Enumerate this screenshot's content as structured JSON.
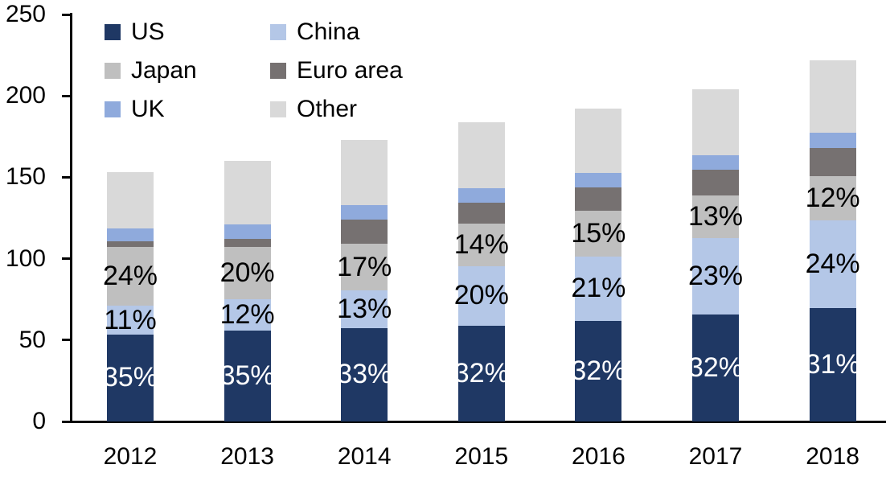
{
  "chart_data": {
    "type": "bar",
    "stacked": true,
    "title": "",
    "xlabel": "",
    "ylabel": "",
    "grid": false,
    "legend_position": "top-left",
    "background_color": "#ffffff",
    "axis_color": "#000000",
    "categories": [
      "2012",
      "2013",
      "2014",
      "2015",
      "2016",
      "2017",
      "2018"
    ],
    "y_axis": {
      "min": 0,
      "max": 250,
      "step": 50,
      "tick_labels": [
        "0",
        "50",
        "100",
        "150",
        "200",
        "250"
      ]
    },
    "series": [
      {
        "name": "US",
        "color": "#1f3864",
        "label_color": "#ffffff",
        "values": [
          53.5,
          56,
          57.5,
          59,
          62,
          65.5,
          69.5
        ],
        "labels": [
          "35%",
          "35%",
          "33%",
          "32%",
          "32%",
          "32%",
          "31%"
        ]
      },
      {
        "name": "China",
        "color": "#b4c7e7",
        "label_color": "#000000",
        "values": [
          17.5,
          19,
          23,
          36.5,
          39.5,
          47,
          54
        ],
        "labels": [
          "11%",
          "12%",
          "13%",
          "20%",
          "21%",
          "23%",
          "24%"
        ]
      },
      {
        "name": "Japan",
        "color": "#bfbfbf",
        "label_color": "#000000",
        "values": [
          36,
          32,
          28.5,
          26,
          28,
          26.5,
          27
        ],
        "labels": [
          "24%",
          "20%",
          "17%",
          "14%",
          "15%",
          "13%",
          "12%"
        ]
      },
      {
        "name": "Euro area",
        "color": "#767171",
        "label_color": "#000000",
        "values": [
          3.5,
          5,
          15,
          13,
          14.5,
          15.5,
          17.5
        ],
        "labels": null
      },
      {
        "name": "UK",
        "color": "#8faadc",
        "label_color": "#000000",
        "values": [
          8,
          9,
          9,
          9,
          8.5,
          9,
          9.5
        ],
        "labels": null
      },
      {
        "name": "Other",
        "color": "#d9d9d9",
        "label_color": "#000000",
        "values": [
          34.5,
          39,
          40,
          40.5,
          39.5,
          40.5,
          44.5
        ],
        "labels": null
      }
    ],
    "totals": [
      153,
      160,
      173,
      184,
      192,
      204,
      222
    ],
    "legend_order": [
      "US",
      "China",
      "Japan",
      "Euro area",
      "UK",
      "Other"
    ]
  }
}
